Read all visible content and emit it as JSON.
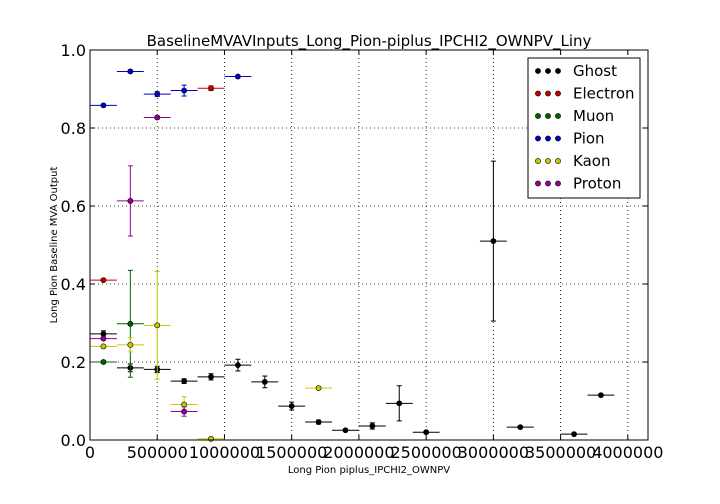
{
  "chart_data": {
    "type": "scatter",
    "title": "BaselineMVAVInputs_Long_Pion-piplus_IPCHI2_OWNPV_Liny",
    "xlabel": "Long Pion piplus_IPCHI2_OWNPV",
    "ylabel": "Long Pion Baseline MVA Output",
    "xlim": [
      0,
      4150000
    ],
    "ylim": [
      0.0,
      1.0
    ],
    "x_ticks": [
      0,
      500000,
      1000000,
      1500000,
      2000000,
      2500000,
      3000000,
      3500000,
      4000000
    ],
    "x_tick_labels": [
      "0",
      "500000",
      "1000000",
      "1500000",
      "2000000",
      "2500000",
      "3000000",
      "3500000",
      "4000000"
    ],
    "y_ticks": [
      0.0,
      0.2,
      0.4,
      0.6,
      0.8,
      1.0
    ],
    "y_tick_labels": [
      "0.0",
      "0.2",
      "0.4",
      "0.6",
      "0.8",
      "1.0"
    ],
    "grid": true,
    "legend_position": "top-right",
    "x_half_bin": 100000,
    "series": [
      {
        "name": "Ghost",
        "color": "#000000",
        "points": [
          {
            "x": 100000,
            "y": 0.272,
            "yerr": 0.008
          },
          {
            "x": 300000,
            "y": 0.185,
            "yerr": 0.01
          },
          {
            "x": 500000,
            "y": 0.181,
            "yerr": 0.008
          },
          {
            "x": 700000,
            "y": 0.151,
            "yerr": 0.006
          },
          {
            "x": 900000,
            "y": 0.162,
            "yerr": 0.008
          },
          {
            "x": 1100000,
            "y": 0.192,
            "yerr": 0.015
          },
          {
            "x": 1300000,
            "y": 0.149,
            "yerr": 0.015
          },
          {
            "x": 1500000,
            "y": 0.087,
            "yerr": 0.01
          },
          {
            "x": 1700000,
            "y": 0.046,
            "yerr": 0.005
          },
          {
            "x": 1900000,
            "y": 0.025,
            "yerr": 0.003
          },
          {
            "x": 2100000,
            "y": 0.036,
            "yerr": 0.008
          },
          {
            "x": 2300000,
            "y": 0.094,
            "yerr": 0.045
          },
          {
            "x": 2500000,
            "y": 0.02,
            "yerr": 0.003
          },
          {
            "x": 3000000,
            "y": 0.51,
            "yerr": 0.205
          },
          {
            "x": 3200000,
            "y": 0.033,
            "yerr": 0.003
          },
          {
            "x": 3600000,
            "y": 0.015,
            "yerr": 0.003
          },
          {
            "x": 3800000,
            "y": 0.115,
            "yerr": 0.003
          }
        ]
      },
      {
        "name": "Electron",
        "color": "#c80000",
        "points": [
          {
            "x": 100000,
            "y": 0.41,
            "yerr": 0.003
          },
          {
            "x": 900000,
            "y": 0.902,
            "yerr": 0.006
          }
        ]
      },
      {
        "name": "Muon",
        "color": "#006400",
        "points": [
          {
            "x": 100000,
            "y": 0.2,
            "yerr": 0.003
          },
          {
            "x": 300000,
            "y": 0.298,
            "yerr": 0.137
          }
        ]
      },
      {
        "name": "Pion",
        "color": "#0000c8",
        "points": [
          {
            "x": 100000,
            "y": 0.858,
            "yerr": 0.003
          },
          {
            "x": 300000,
            "y": 0.945,
            "yerr": 0.003
          },
          {
            "x": 500000,
            "y": 0.887,
            "yerr": 0.006
          },
          {
            "x": 700000,
            "y": 0.896,
            "yerr": 0.014
          },
          {
            "x": 1100000,
            "y": 0.932,
            "yerr": 0.003
          }
        ]
      },
      {
        "name": "Kaon",
        "color": "#c8c800",
        "points": [
          {
            "x": 100000,
            "y": 0.24,
            "yerr": 0.003
          },
          {
            "x": 300000,
            "y": 0.244,
            "yerr": 0.018
          },
          {
            "x": 500000,
            "y": 0.294,
            "yerr": 0.138
          },
          {
            "x": 700000,
            "y": 0.091,
            "yerr": 0.02
          },
          {
            "x": 900000,
            "y": 0.003,
            "yerr": 0.003
          },
          {
            "x": 1700000,
            "y": 0.133,
            "yerr": 0.004
          }
        ]
      },
      {
        "name": "Proton",
        "color": "#960096",
        "points": [
          {
            "x": 100000,
            "y": 0.26,
            "yerr": 0.003
          },
          {
            "x": 300000,
            "y": 0.613,
            "yerr": 0.09
          },
          {
            "x": 500000,
            "y": 0.827,
            "yerr": 0.004
          },
          {
            "x": 700000,
            "y": 0.073,
            "yerr": 0.012
          }
        ]
      }
    ]
  }
}
